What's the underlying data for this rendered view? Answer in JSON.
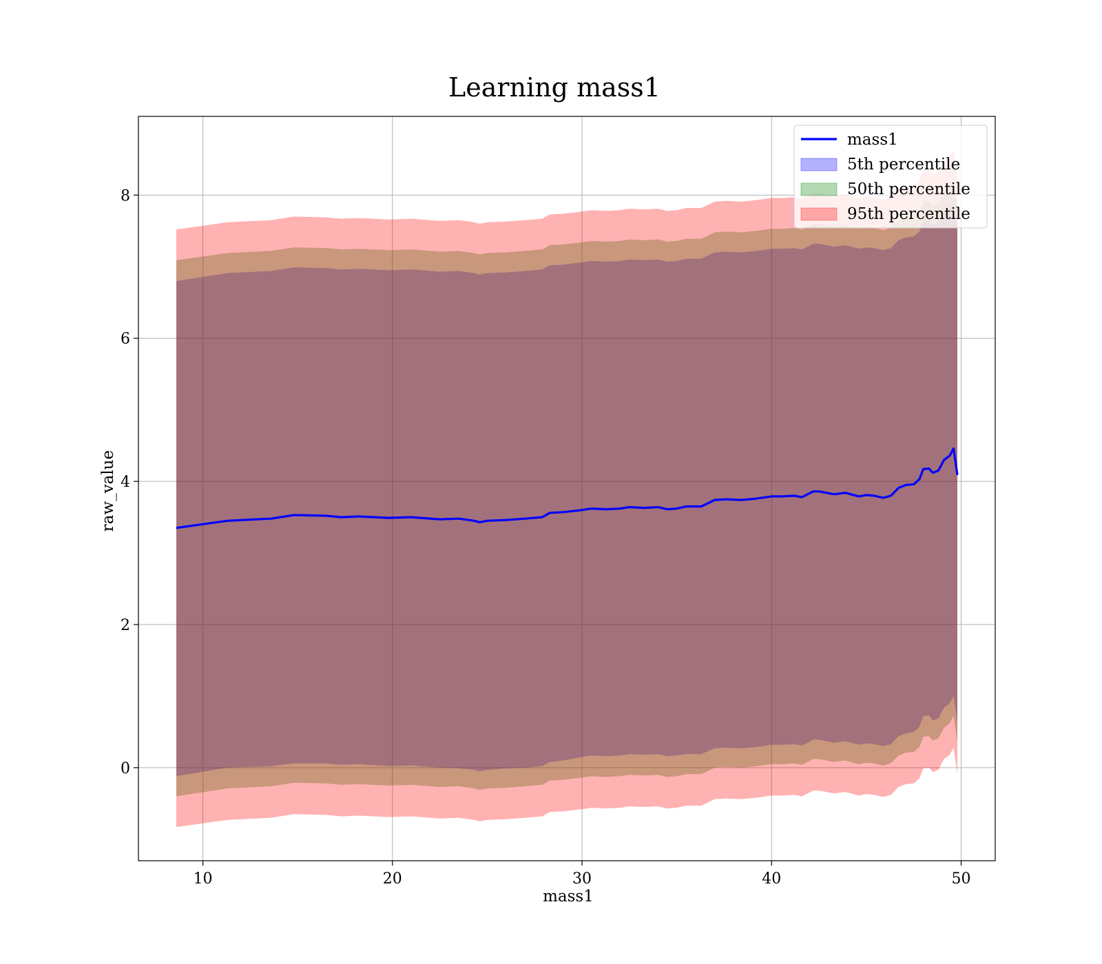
{
  "chart_data": {
    "type": "area",
    "title": "Learning mass1",
    "xlabel": "mass1",
    "ylabel": "raw_value",
    "xlim": [
      6.6,
      51.8
    ],
    "ylim": [
      -1.3,
      9.1
    ],
    "xticks": [
      10,
      20,
      30,
      40,
      50
    ],
    "yticks": [
      0,
      2,
      4,
      6,
      8
    ],
    "grid": true,
    "legend_position": "upper right",
    "x": [
      8.6,
      11.3,
      13.6,
      14.8,
      16.5,
      17.3,
      18.2,
      19.8,
      21.0,
      22.5,
      23.5,
      24.3,
      24.6,
      25.0,
      26.0,
      27.0,
      27.9,
      28.3,
      29.0,
      30.0,
      30.5,
      31.3,
      32.0,
      32.5,
      33.3,
      34.0,
      34.5,
      35.0,
      35.5,
      36.3,
      37.0,
      37.6,
      38.4,
      39.2,
      40.0,
      40.6,
      41.2,
      41.6,
      42.2,
      42.5,
      43.3,
      43.9,
      44.6,
      45.0,
      45.4,
      45.9,
      46.3,
      46.7,
      47.1,
      47.5,
      47.8,
      48.0,
      48.3,
      48.5,
      48.8,
      49.1,
      49.4,
      49.6,
      49.8
    ],
    "series": [
      {
        "name": "mass1",
        "color": "#0000ff",
        "values": [
          3.35,
          3.45,
          3.48,
          3.53,
          3.52,
          3.5,
          3.51,
          3.49,
          3.5,
          3.47,
          3.48,
          3.45,
          3.43,
          3.45,
          3.46,
          3.48,
          3.5,
          3.56,
          3.57,
          3.6,
          3.62,
          3.61,
          3.62,
          3.64,
          3.63,
          3.64,
          3.61,
          3.62,
          3.65,
          3.65,
          3.74,
          3.75,
          3.74,
          3.76,
          3.79,
          3.79,
          3.8,
          3.78,
          3.86,
          3.86,
          3.82,
          3.84,
          3.79,
          3.81,
          3.8,
          3.77,
          3.8,
          3.91,
          3.95,
          3.96,
          4.03,
          4.17,
          4.18,
          4.12,
          4.15,
          4.3,
          4.36,
          4.46,
          4.09
        ]
      }
    ],
    "bands": [
      {
        "name": "5th percentile",
        "color": "#0000ff",
        "lower": [
          -0.12,
          0.0,
          0.02,
          0.06,
          0.06,
          0.04,
          0.05,
          0.02,
          0.03,
          0.0,
          -0.01,
          -0.03,
          -0.05,
          -0.03,
          -0.01,
          0.0,
          0.02,
          0.08,
          0.1,
          0.15,
          0.17,
          0.16,
          0.17,
          0.19,
          0.18,
          0.19,
          0.16,
          0.17,
          0.19,
          0.19,
          0.27,
          0.28,
          0.27,
          0.29,
          0.32,
          0.32,
          0.33,
          0.31,
          0.39,
          0.39,
          0.35,
          0.37,
          0.32,
          0.34,
          0.33,
          0.3,
          0.33,
          0.44,
          0.48,
          0.5,
          0.57,
          0.72,
          0.73,
          0.66,
          0.69,
          0.84,
          0.9,
          1.0,
          0.62
        ],
        "upper": [
          6.8,
          6.91,
          6.94,
          6.99,
          6.98,
          6.96,
          6.97,
          6.95,
          6.96,
          6.93,
          6.94,
          6.91,
          6.89,
          6.91,
          6.92,
          6.94,
          6.96,
          7.02,
          7.03,
          7.06,
          7.08,
          7.07,
          7.08,
          7.1,
          7.09,
          7.1,
          7.07,
          7.08,
          7.11,
          7.11,
          7.2,
          7.21,
          7.2,
          7.22,
          7.25,
          7.25,
          7.26,
          7.24,
          7.32,
          7.32,
          7.28,
          7.3,
          7.25,
          7.27,
          7.26,
          7.23,
          7.26,
          7.37,
          7.41,
          7.42,
          7.49,
          7.63,
          7.64,
          7.58,
          7.61,
          7.76,
          7.82,
          7.92,
          7.55
        ]
      },
      {
        "name": "50th percentile",
        "color": "#008000",
        "lower": [
          -0.4,
          -0.29,
          -0.26,
          -0.21,
          -0.22,
          -0.24,
          -0.23,
          -0.25,
          -0.24,
          -0.27,
          -0.26,
          -0.29,
          -0.31,
          -0.29,
          -0.28,
          -0.26,
          -0.24,
          -0.18,
          -0.17,
          -0.14,
          -0.12,
          -0.13,
          -0.12,
          -0.1,
          -0.11,
          -0.1,
          -0.13,
          -0.12,
          -0.09,
          -0.09,
          0.0,
          0.01,
          0.0,
          0.02,
          0.05,
          0.05,
          0.06,
          0.04,
          0.12,
          0.12,
          0.08,
          0.1,
          0.05,
          0.07,
          0.06,
          0.03,
          0.06,
          0.17,
          0.21,
          0.22,
          0.29,
          0.43,
          0.44,
          0.38,
          0.41,
          0.56,
          0.62,
          0.72,
          0.35
        ],
        "upper": [
          7.09,
          7.19,
          7.22,
          7.27,
          7.26,
          7.24,
          7.25,
          7.23,
          7.24,
          7.21,
          7.22,
          7.19,
          7.17,
          7.19,
          7.2,
          7.22,
          7.24,
          7.3,
          7.31,
          7.34,
          7.36,
          7.35,
          7.36,
          7.38,
          7.37,
          7.38,
          7.35,
          7.36,
          7.39,
          7.39,
          7.48,
          7.49,
          7.48,
          7.5,
          7.53,
          7.53,
          7.54,
          7.52,
          7.6,
          7.6,
          7.56,
          7.58,
          7.53,
          7.55,
          7.54,
          7.51,
          7.54,
          7.65,
          7.69,
          7.7,
          7.77,
          7.91,
          7.92,
          7.86,
          7.89,
          8.04,
          8.1,
          8.2,
          7.83
        ]
      },
      {
        "name": "95th percentile",
        "color": "#ff0000",
        "lower": [
          -0.83,
          -0.73,
          -0.7,
          -0.65,
          -0.66,
          -0.68,
          -0.67,
          -0.69,
          -0.68,
          -0.71,
          -0.7,
          -0.73,
          -0.75,
          -0.73,
          -0.72,
          -0.7,
          -0.68,
          -0.62,
          -0.61,
          -0.58,
          -0.56,
          -0.57,
          -0.56,
          -0.54,
          -0.55,
          -0.54,
          -0.57,
          -0.56,
          -0.53,
          -0.53,
          -0.44,
          -0.43,
          -0.44,
          -0.42,
          -0.39,
          -0.39,
          -0.38,
          -0.4,
          -0.32,
          -0.32,
          -0.36,
          -0.34,
          -0.39,
          -0.37,
          -0.38,
          -0.41,
          -0.38,
          -0.27,
          -0.23,
          -0.22,
          -0.15,
          -0.01,
          0.0,
          -0.06,
          -0.03,
          0.12,
          0.18,
          0.28,
          -0.09
        ],
        "upper": [
          7.52,
          7.62,
          7.65,
          7.7,
          7.69,
          7.67,
          7.68,
          7.66,
          7.67,
          7.64,
          7.65,
          7.62,
          7.6,
          7.62,
          7.63,
          7.65,
          7.67,
          7.73,
          7.74,
          7.77,
          7.79,
          7.78,
          7.79,
          7.81,
          7.8,
          7.81,
          7.78,
          7.79,
          7.82,
          7.82,
          7.91,
          7.92,
          7.91,
          7.93,
          7.96,
          7.96,
          7.97,
          7.95,
          8.03,
          8.03,
          7.99,
          8.01,
          7.96,
          7.98,
          7.97,
          7.94,
          7.97,
          8.08,
          8.12,
          8.13,
          8.2,
          8.34,
          8.35,
          8.29,
          8.32,
          8.47,
          8.53,
          8.63,
          8.26
        ]
      }
    ]
  }
}
